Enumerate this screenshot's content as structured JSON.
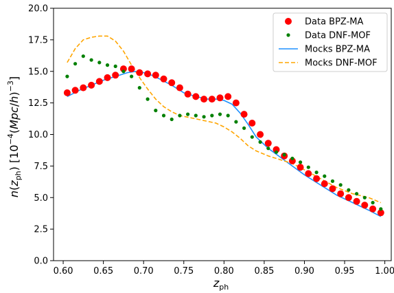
{
  "chart_data": {
    "type": "line",
    "xlabel": "z_ph",
    "ylabel": "n(z_ph)   [10^-4 (Mpc/h)^-3]",
    "xlim": [
      0.588,
      1.008
    ],
    "ylim": [
      0,
      20
    ],
    "xticks": [
      "0.60",
      "0.65",
      "0.70",
      "0.75",
      "0.80",
      "0.85",
      "0.90",
      "0.95",
      "1.00"
    ],
    "yticks": [
      "0.0",
      "2.5",
      "5.0",
      "7.5",
      "10.0",
      "12.5",
      "15.0",
      "17.5",
      "20.0"
    ],
    "grid": false,
    "legend_position": "top-right",
    "series": [
      {
        "name": "Data BPZ-MA",
        "style": "scatter-large",
        "color": "#ff0000",
        "x": [
          0.605,
          0.615,
          0.625,
          0.635,
          0.645,
          0.655,
          0.665,
          0.675,
          0.685,
          0.695,
          0.705,
          0.715,
          0.725,
          0.735,
          0.745,
          0.755,
          0.765,
          0.775,
          0.785,
          0.795,
          0.805,
          0.815,
          0.825,
          0.835,
          0.845,
          0.855,
          0.865,
          0.875,
          0.885,
          0.895,
          0.905,
          0.915,
          0.925,
          0.935,
          0.945,
          0.955,
          0.965,
          0.975,
          0.985,
          0.995
        ],
        "y": [
          13.3,
          13.5,
          13.7,
          13.9,
          14.2,
          14.5,
          14.7,
          15.2,
          15.2,
          14.9,
          14.8,
          14.7,
          14.4,
          14.1,
          13.7,
          13.2,
          13.0,
          12.8,
          12.8,
          12.9,
          13.0,
          12.5,
          11.6,
          10.9,
          10.0,
          9.3,
          8.8,
          8.3,
          7.9,
          7.4,
          6.9,
          6.5,
          6.1,
          5.7,
          5.3,
          5.0,
          4.7,
          4.4,
          4.1,
          3.8
        ]
      },
      {
        "name": "Data DNF-MOF",
        "style": "scatter-small",
        "color": "#008000",
        "x": [
          0.605,
          0.615,
          0.625,
          0.635,
          0.645,
          0.655,
          0.665,
          0.675,
          0.685,
          0.695,
          0.705,
          0.715,
          0.725,
          0.735,
          0.745,
          0.755,
          0.765,
          0.775,
          0.785,
          0.795,
          0.805,
          0.815,
          0.825,
          0.835,
          0.845,
          0.855,
          0.865,
          0.875,
          0.885,
          0.895,
          0.905,
          0.915,
          0.925,
          0.935,
          0.945,
          0.955,
          0.965,
          0.975,
          0.985,
          0.995
        ],
        "y": [
          14.6,
          15.6,
          16.2,
          15.9,
          15.7,
          15.5,
          15.4,
          15.0,
          14.6,
          13.7,
          12.8,
          11.9,
          11.5,
          11.2,
          11.5,
          11.6,
          11.5,
          11.4,
          11.5,
          11.6,
          11.5,
          11.0,
          10.5,
          9.8,
          9.4,
          8.9,
          8.6,
          8.4,
          8.1,
          7.8,
          7.4,
          7.0,
          6.7,
          6.3,
          6.0,
          5.6,
          5.3,
          5.0,
          4.6,
          4.1
        ]
      },
      {
        "name": "Mocks BPZ-MA",
        "style": "solid",
        "color": "#1e90ff",
        "x": [
          0.605,
          0.62,
          0.635,
          0.65,
          0.665,
          0.68,
          0.69,
          0.7,
          0.71,
          0.72,
          0.735,
          0.75,
          0.765,
          0.78,
          0.79,
          0.8,
          0.81,
          0.82,
          0.83,
          0.84,
          0.855,
          0.87,
          0.885,
          0.9,
          0.92,
          0.94,
          0.96,
          0.98,
          0.995
        ],
        "y": [
          13.0,
          13.5,
          13.9,
          14.3,
          14.6,
          14.9,
          15.0,
          14.9,
          14.7,
          14.4,
          13.9,
          13.3,
          13.0,
          12.8,
          12.8,
          12.7,
          12.4,
          11.7,
          10.8,
          9.8,
          8.9,
          8.2,
          7.5,
          6.8,
          6.0,
          5.2,
          4.6,
          4.0,
          3.5
        ]
      },
      {
        "name": "Mocks DNF-MOF",
        "style": "dashed",
        "color": "#ffa500",
        "x": [
          0.605,
          0.615,
          0.625,
          0.635,
          0.645,
          0.655,
          0.665,
          0.675,
          0.685,
          0.695,
          0.705,
          0.715,
          0.725,
          0.735,
          0.745,
          0.76,
          0.775,
          0.79,
          0.8,
          0.81,
          0.82,
          0.83,
          0.84,
          0.855,
          0.87,
          0.885,
          0.9,
          0.92,
          0.94,
          0.96,
          0.98,
          0.995
        ],
        "y": [
          15.7,
          16.8,
          17.5,
          17.7,
          17.8,
          17.8,
          17.4,
          16.6,
          15.5,
          14.5,
          13.6,
          12.8,
          12.2,
          11.8,
          11.5,
          11.3,
          11.1,
          10.9,
          10.6,
          10.2,
          9.7,
          9.1,
          8.7,
          8.3,
          8.0,
          7.7,
          7.2,
          6.5,
          5.8,
          5.3,
          5.0,
          4.6
        ]
      }
    ]
  }
}
